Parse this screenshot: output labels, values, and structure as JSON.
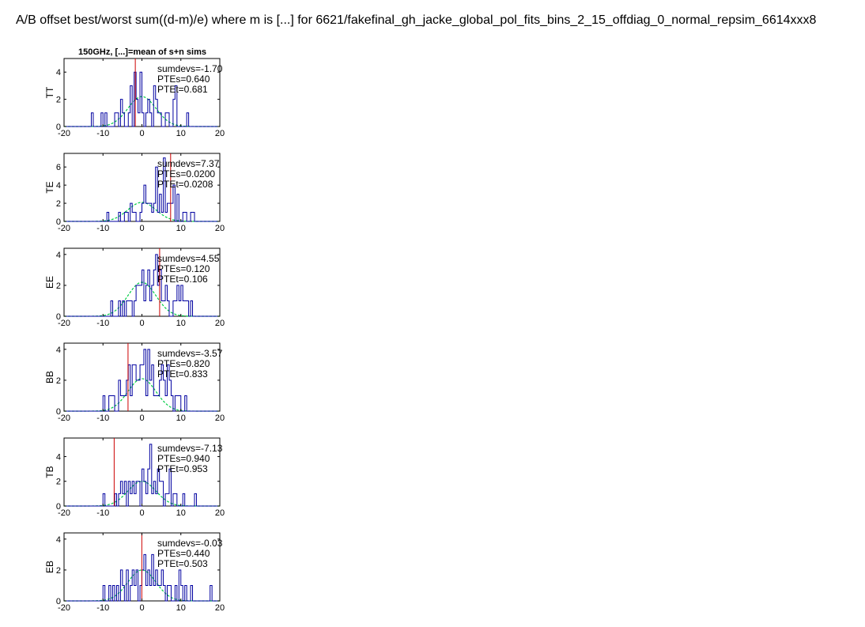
{
  "page_title": "A/B offset best/worst sum((d-m)/e) where m is [...] for 6621/fakefinal_gh_jacke_global_pol_fits_bins_2_15_offdiag_0_normal_repsim_6614xxx8",
  "panel_title": "150GHz, [...]=mean of s+n sims",
  "colors": {
    "histogram": "#0000a0",
    "expected": "#00cc44",
    "observed": "#cc0000",
    "axis": "#000000"
  },
  "chart_data": [
    {
      "type": "histogram",
      "ylabel": "TT",
      "xlim": [
        -20,
        20
      ],
      "ylim": [
        0,
        5
      ],
      "xticks": [
        -20,
        -10,
        0,
        10,
        20
      ],
      "yticks": [
        0,
        2,
        4
      ],
      "bins": {
        "start": -13,
        "width": 0.5,
        "counts": [
          1,
          0,
          0,
          0,
          0,
          1,
          0,
          1,
          0,
          0,
          0,
          0,
          1,
          1,
          0,
          2,
          1,
          0,
          0,
          1,
          3,
          0,
          4,
          2,
          1,
          4,
          1,
          0,
          1,
          2,
          1,
          0,
          3,
          2,
          1,
          1,
          0,
          0,
          1,
          1,
          0,
          0,
          2,
          3,
          0,
          0,
          0,
          0,
          0,
          1
        ]
      },
      "gaussian": {
        "mean": 0,
        "sigma": 3.6,
        "peak": 2.2
      },
      "observed": -1.7,
      "annotations": [
        "sumdevs=-1.70",
        "PTEs=0.640",
        "PTEt=0.681"
      ]
    },
    {
      "type": "histogram",
      "ylabel": "TE",
      "xlim": [
        -20,
        20
      ],
      "ylim": [
        0,
        7.5
      ],
      "xticks": [
        -20,
        -10,
        0,
        10,
        20
      ],
      "yticks": [
        0,
        2,
        4,
        6
      ],
      "bins": {
        "start": -9,
        "width": 0.5,
        "counts": [
          1,
          0,
          0,
          0,
          0,
          0,
          1,
          0,
          0,
          1,
          1,
          0,
          2,
          1,
          1,
          0,
          0,
          1,
          2,
          4,
          2,
          2,
          2,
          1,
          2,
          6,
          1,
          3,
          1,
          7,
          1,
          2,
          2,
          2,
          4,
          0,
          3,
          0,
          0,
          1,
          1,
          0,
          0,
          1,
          1
        ]
      },
      "gaussian": {
        "mean": 0,
        "sigma": 3.6,
        "peak": 2.1
      },
      "observed": 7.37,
      "annotations": [
        "sumdevs=7.37",
        "PTEs=0.0200",
        "PTEt=0.0208"
      ]
    },
    {
      "type": "histogram",
      "ylabel": "EE",
      "xlim": [
        -20,
        20
      ],
      "ylim": [
        0,
        4.4
      ],
      "xticks": [
        -20,
        -10,
        0,
        10,
        20
      ],
      "yticks": [
        0,
        2,
        4
      ],
      "bins": {
        "start": -8,
        "width": 0.5,
        "counts": [
          1,
          0,
          0,
          0,
          1,
          0,
          1,
          0,
          1,
          1,
          1,
          0,
          1,
          2,
          2,
          2,
          3,
          1,
          2,
          3,
          1,
          2,
          3,
          4,
          2,
          3,
          1,
          1,
          2,
          1,
          0,
          0,
          1,
          1,
          2,
          1,
          2,
          1,
          1,
          1,
          0,
          1
        ]
      },
      "gaussian": {
        "mean": 0,
        "sigma": 3.6,
        "peak": 2.2
      },
      "observed": 4.55,
      "annotations": [
        "sumdevs=4.55",
        "PTEs=0.120",
        "PTEt=0.106"
      ]
    },
    {
      "type": "histogram",
      "ylabel": "BB",
      "xlim": [
        -20,
        20
      ],
      "ylim": [
        0,
        4.4
      ],
      "xticks": [
        -20,
        -10,
        0,
        10,
        20
      ],
      "yticks": [
        0,
        2,
        4
      ],
      "bins": {
        "start": -10,
        "width": 0.5,
        "counts": [
          1,
          0,
          0,
          1,
          1,
          1,
          0,
          0,
          2,
          1,
          1,
          1,
          2,
          3,
          1,
          3,
          3,
          2,
          2,
          3,
          3,
          4,
          1,
          4,
          2,
          3,
          1,
          1,
          1,
          2,
          3,
          2,
          1,
          3,
          2,
          1,
          0,
          1,
          1,
          1,
          0,
          0,
          1,
          0
        ]
      },
      "gaussian": {
        "mean": 0,
        "sigma": 3.6,
        "peak": 2.1
      },
      "observed": -3.57,
      "annotations": [
        "sumdevs=-3.57",
        "PTEs=0.820",
        "PTEt=0.833"
      ]
    },
    {
      "type": "histogram",
      "ylabel": "TB",
      "xlim": [
        -20,
        20
      ],
      "ylim": [
        0,
        5.5
      ],
      "xticks": [
        -20,
        -10,
        0,
        10,
        20
      ],
      "yticks": [
        0,
        2,
        4
      ],
      "bins": {
        "start": -10,
        "width": 0.5,
        "counts": [
          1,
          0,
          0,
          0,
          0,
          0,
          1,
          0,
          1,
          2,
          1,
          2,
          0,
          2,
          1,
          2,
          1,
          2,
          2,
          0,
          3,
          2,
          1,
          3,
          5,
          1,
          2,
          1,
          3,
          2,
          2,
          0,
          1,
          1,
          3,
          0,
          1,
          1,
          0,
          0,
          0,
          1,
          0,
          0,
          0,
          0,
          0,
          1
        ]
      },
      "gaussian": {
        "mean": 0,
        "sigma": 3.6,
        "peak": 2.0
      },
      "observed": -7.13,
      "annotations": [
        "sumdevs=-7.13",
        "PTEs=0.940",
        "PTEt=0.953"
      ]
    },
    {
      "type": "histogram",
      "ylabel": "EB",
      "xlim": [
        -20,
        20
      ],
      "ylim": [
        0,
        4.4
      ],
      "xticks": [
        -20,
        -10,
        0,
        10,
        20
      ],
      "yticks": [
        0,
        2,
        4
      ],
      "bins": {
        "start": -10,
        "width": 0.5,
        "counts": [
          1,
          0,
          0,
          1,
          0,
          1,
          0,
          1,
          0,
          2,
          1,
          0,
          2,
          0,
          1,
          2,
          1,
          2,
          0,
          1,
          2,
          3,
          1,
          2,
          1,
          3,
          1,
          2,
          1,
          1,
          2,
          1,
          0,
          1,
          1,
          0,
          0,
          1,
          0,
          2,
          1,
          0,
          1,
          0,
          0,
          1,
          0,
          0,
          0,
          0,
          0,
          0,
          0,
          0,
          0,
          1
        ]
      },
      "gaussian": {
        "mean": 0,
        "sigma": 3.6,
        "peak": 2.0
      },
      "observed": -0.03,
      "annotations": [
        "sumdevs=-0.03",
        "PTEs=0.440",
        "PTEt=0.503"
      ]
    }
  ]
}
